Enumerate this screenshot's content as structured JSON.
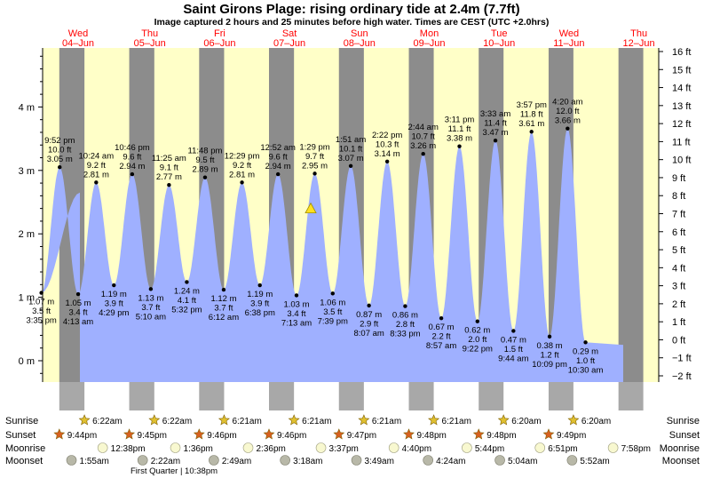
{
  "chart_data": {
    "type": "area",
    "title": "Saint Girons Plage: rising  ordinary tide at 2.4m (7.7ft)",
    "subtitle": "Image captured 2 hours and 25 minutes before high water. Times are CEST (UTC +2.0hrs)",
    "ylim_m": [
      -0.35,
      4.83
    ],
    "ylim_ft": [
      -2,
      16
    ],
    "left_ticks": [
      "0 m",
      "1 m",
      "2 m",
      "3 m",
      "4 m"
    ],
    "left_tick_values": [
      0,
      1,
      2,
      3,
      4
    ],
    "right_ticks": [
      "−2 ft",
      "−1 ft",
      "0 ft",
      "1 ft",
      "2 ft",
      "3 ft",
      "4 ft",
      "5 ft",
      "6 ft",
      "7 ft",
      "8 ft",
      "9 ft",
      "10 ft",
      "11 ft",
      "12 ft",
      "13 ft",
      "14 ft",
      "15 ft",
      "16 ft"
    ],
    "right_tick_values": [
      -2,
      -1,
      0,
      1,
      2,
      3,
      4,
      5,
      6,
      7,
      8,
      9,
      10,
      11,
      12,
      13,
      14,
      15,
      16
    ],
    "days": [
      {
        "name": "Wed",
        "date": "04–Jun"
      },
      {
        "name": "Thu",
        "date": "05–Jun"
      },
      {
        "name": "Fri",
        "date": "06–Jun"
      },
      {
        "name": "Sat",
        "date": "07–Jun"
      },
      {
        "name": "Sun",
        "date": "08–Jun"
      },
      {
        "name": "Mon",
        "date": "09–Jun"
      },
      {
        "name": "Tue",
        "date": "10–Jun"
      },
      {
        "name": "Wed",
        "date": "11–Jun"
      },
      {
        "name": "Thu",
        "date": "12–Jun"
      }
    ],
    "start_height_m": 2.65,
    "end_height_m": 0.25,
    "extremes": [
      {
        "type": "low",
        "time": "3:35 pm",
        "height_m": 1.07,
        "height_ft": "3.5 ft",
        "label_m": "1.07 m",
        "label_t": "3:35 pm"
      },
      {
        "type": "high",
        "time": "9:52 pm",
        "height_m": 3.05,
        "height_ft": "10.0 ft",
        "label_m": "3.05 m",
        "label_t": "9:52 pm"
      },
      {
        "type": "low",
        "time": "4:13 am",
        "height_m": 1.05,
        "height_ft": "3.4 ft",
        "label_m": "1.05 m",
        "label_t": "4:13 am"
      },
      {
        "type": "high",
        "time": "10:24 am",
        "height_m": 2.81,
        "height_ft": "9.2 ft",
        "label_m": "2.81 m",
        "label_t": "10:24 am"
      },
      {
        "type": "low",
        "time": "4:29 pm",
        "height_m": 1.19,
        "height_ft": "3.9 ft",
        "label_m": "1.19 m",
        "label_t": "4:29 pm"
      },
      {
        "type": "high",
        "time": "10:46 pm",
        "height_m": 2.94,
        "height_ft": "9.6 ft",
        "label_m": "2.94 m",
        "label_t": "10:46 pm"
      },
      {
        "type": "low",
        "time": "5:10 am",
        "height_m": 1.13,
        "height_ft": "3.7 ft",
        "label_m": "1.13 m",
        "label_t": "5:10 am"
      },
      {
        "type": "high",
        "time": "11:25 am",
        "height_m": 2.77,
        "height_ft": "9.1 ft",
        "label_m": "2.77 m",
        "label_t": "11:25 am"
      },
      {
        "type": "low",
        "time": "5:32 pm",
        "height_m": 1.24,
        "height_ft": "4.1 ft",
        "label_m": "1.24 m",
        "label_t": "5:32 pm"
      },
      {
        "type": "high",
        "time": "11:48 pm",
        "height_m": 2.89,
        "height_ft": "9.5 ft",
        "label_m": "2.89 m",
        "label_t": "11:48 pm"
      },
      {
        "type": "low",
        "time": "6:12 am",
        "height_m": 1.12,
        "height_ft": "3.7 ft",
        "label_m": "1.12 m",
        "label_t": "6:12 am"
      },
      {
        "type": "high",
        "time": "12:29 pm",
        "height_m": 2.81,
        "height_ft": "9.2 ft",
        "label_m": "2.81 m",
        "label_t": "12:29 pm"
      },
      {
        "type": "low",
        "time": "6:38 pm",
        "height_m": 1.19,
        "height_ft": "3.9 ft",
        "label_m": "1.19 m",
        "label_t": "6:38 pm"
      },
      {
        "type": "high",
        "time": "12:52 am",
        "height_m": 2.94,
        "height_ft": "9.6 ft",
        "label_m": "2.94 m",
        "label_t": "12:52 am"
      },
      {
        "type": "low",
        "time": "7:13 am",
        "height_m": 1.03,
        "height_ft": "3.4 ft",
        "label_m": "1.03 m",
        "label_t": "7:13 am"
      },
      {
        "type": "high",
        "time": "1:29 pm",
        "height_m": 2.95,
        "height_ft": "9.7 ft",
        "label_m": "2.95 m",
        "label_t": "1:29 pm"
      },
      {
        "type": "low",
        "time": "7:39 pm",
        "height_m": 1.06,
        "height_ft": "3.5 ft",
        "label_m": "1.06 m",
        "label_t": "7:39 pm"
      },
      {
        "type": "high",
        "time": "1:51 am",
        "height_m": 3.07,
        "height_ft": "10.1 ft",
        "label_m": "3.07 m",
        "label_t": "1:51 am"
      },
      {
        "type": "low",
        "time": "8:07 am",
        "height_m": 0.87,
        "height_ft": "2.9 ft",
        "label_m": "0.87 m",
        "label_t": "8:07 am"
      },
      {
        "type": "high",
        "time": "2:22 pm",
        "height_m": 3.14,
        "height_ft": "10.3 ft",
        "label_m": "3.14 m",
        "label_t": "2:22 pm"
      },
      {
        "type": "low",
        "time": "8:33 pm",
        "height_m": 0.86,
        "height_ft": "2.8 ft",
        "label_m": "0.86 m",
        "label_t": "8:33 pm"
      },
      {
        "type": "high",
        "time": "2:44 am",
        "height_m": 3.26,
        "height_ft": "10.7 ft",
        "label_m": "3.26 m",
        "label_t": "2:44 am"
      },
      {
        "type": "low",
        "time": "8:57 am",
        "height_m": 0.67,
        "height_ft": "2.2 ft",
        "label_m": "0.67 m",
        "label_t": "8:57 am"
      },
      {
        "type": "high",
        "time": "3:11 pm",
        "height_m": 3.38,
        "height_ft": "11.1 ft",
        "label_m": "3.38 m",
        "label_t": "3:11 pm"
      },
      {
        "type": "low",
        "time": "9:22 pm",
        "height_m": 0.62,
        "height_ft": "2.0 ft",
        "label_m": "0.62 m",
        "label_t": "9:22 pm"
      },
      {
        "type": "high",
        "time": "3:33 am",
        "height_m": 3.47,
        "height_ft": "11.4 ft",
        "label_m": "3.47 m",
        "label_t": "3:33 am"
      },
      {
        "type": "low",
        "time": "9:44 am",
        "height_m": 0.47,
        "height_ft": "1.5 ft",
        "label_m": "0.47 m",
        "label_t": "9:44 am"
      },
      {
        "type": "high",
        "time": "3:57 pm",
        "height_m": 3.61,
        "height_ft": "11.8 ft",
        "label_m": "3.61 m",
        "label_t": "3:57 pm"
      },
      {
        "type": "low",
        "time": "10:09 pm",
        "height_m": 0.38,
        "height_ft": "1.2 ft",
        "label_m": "0.38 m",
        "label_t": "10:09 pm"
      },
      {
        "type": "high",
        "time": "4:20 am",
        "height_m": 3.66,
        "height_ft": "12.0 ft",
        "label_m": "3.66 m",
        "label_t": "4:20 am"
      },
      {
        "type": "low",
        "time": "10:30 am",
        "height_m": 0.29,
        "height_ft": "1.0 ft",
        "label_m": "0.29 m",
        "label_t": "10:30 am"
      }
    ],
    "current_tide_m": 2.4,
    "sunrise": [
      "6:22am",
      "6:22am",
      "6:21am",
      "6:21am",
      "6:21am",
      "6:21am",
      "6:20am",
      "6:20am"
    ],
    "sunset": [
      "9:44pm",
      "9:45pm",
      "9:46pm",
      "9:46pm",
      "9:47pm",
      "9:48pm",
      "9:48pm",
      "9:49pm"
    ],
    "moonrise": [
      "12:38pm",
      "1:36pm",
      "2:36pm",
      "3:37pm",
      "4:40pm",
      "5:44pm",
      "6:51pm",
      "7:58pm"
    ],
    "moonset": [
      "1:55am",
      "2:22am",
      "2:49am",
      "3:18am",
      "3:49am",
      "4:24am",
      "5:04am",
      "5:52am"
    ],
    "row_labels": [
      "Sunrise",
      "Sunset",
      "Moonrise",
      "Moonset"
    ],
    "moon_phase_note": "First Quarter | 10:38pm",
    "colors": {
      "water": "#9fb0ff",
      "day": "#ffffc8",
      "night": "#8c8c8c",
      "night_strip": "#a8a8a8",
      "day_label": "#ff0000",
      "sun": "#e0c030",
      "sunset": "#d86020",
      "moon": "#f8f8d0",
      "moonset": "#b8b8a8",
      "marker": "#ffe020"
    }
  }
}
